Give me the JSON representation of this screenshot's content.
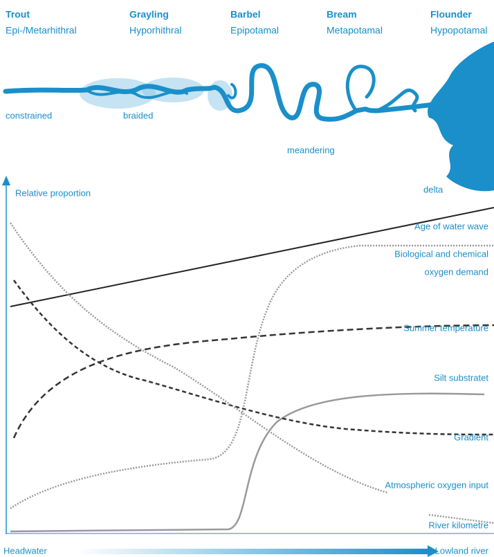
{
  "zones": [
    {
      "name": "Trout",
      "zone": "Epi-/Metarhithral"
    },
    {
      "name": "Grayling",
      "zone": "Hyporhithral"
    },
    {
      "name": "Barbel",
      "zone": "Epipotamal"
    },
    {
      "name": "Bream",
      "zone": "Metapotamal"
    },
    {
      "name": "Flounder",
      "zone": "Hypopotamal"
    }
  ],
  "river_forms": [
    "constrained",
    "braided",
    "meandering",
    "delta"
  ],
  "y_axis_label": "Relative proportion",
  "curves": [
    {
      "label": [
        "Age of water wave"
      ]
    },
    {
      "label": [
        "Biological and chemical",
        "oxygen demand"
      ]
    },
    {
      "label": [
        "Summer temperature"
      ]
    },
    {
      "label": [
        "Silt substratet"
      ]
    },
    {
      "label": [
        "Gradient"
      ]
    },
    {
      "label": [
        "Atmospheric oxygen input"
      ]
    },
    {
      "label": [
        "River kilometre"
      ]
    }
  ],
  "x_axis": {
    "start": "Headwater",
    "end": "Lowland river"
  }
}
